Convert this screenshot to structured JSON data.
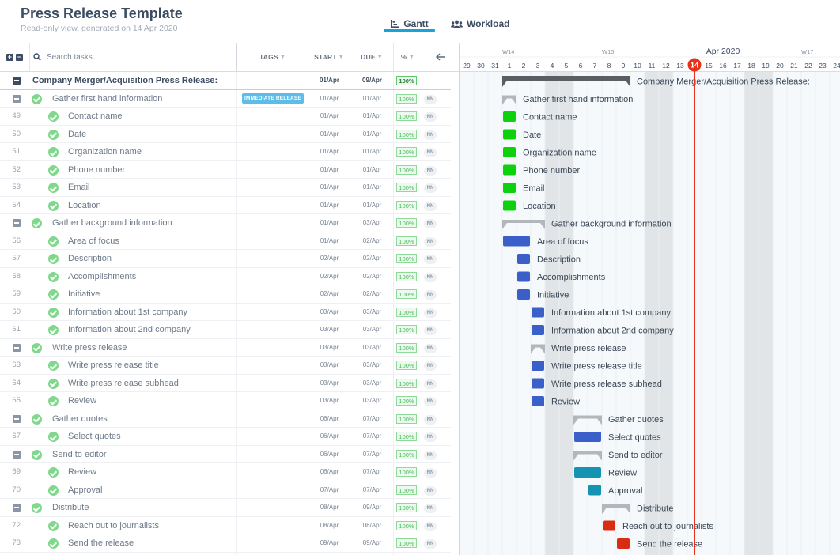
{
  "header": {
    "title": "Press Release Template",
    "subtitle": "Read-only view, generated on 14 Apr 2020",
    "tabs": [
      {
        "label": "Gantt",
        "icon": "bar-chart-icon",
        "active": true
      },
      {
        "label": "Workload",
        "icon": "users-icon",
        "active": false
      }
    ]
  },
  "table": {
    "search_placeholder": "Search tasks...",
    "columns": {
      "tags": "TAGS",
      "start": "START",
      "due": "DUE",
      "percent": "%"
    },
    "back_icon": "arrow-left-icon",
    "rows": [
      {
        "num": "",
        "name": "Company Merger/Acquisition Press Release:",
        "level": 0,
        "type": "top",
        "tag": "",
        "start": "01/Apr",
        "due": "09/Apr",
        "pct": "100%",
        "assignee": ""
      },
      {
        "num": "",
        "name": "Gather first hand information",
        "level": 1,
        "type": "group",
        "tag": "IMMEDIATE RELEASE",
        "start": "01/Apr",
        "due": "01/Apr",
        "pct": "100%",
        "assignee": "NN"
      },
      {
        "num": "49",
        "name": "Contact name",
        "level": 2,
        "type": "task",
        "tag": "",
        "start": "01/Apr",
        "due": "01/Apr",
        "pct": "100%",
        "assignee": "NN"
      },
      {
        "num": "50",
        "name": "Date",
        "level": 2,
        "type": "task",
        "tag": "",
        "start": "01/Apr",
        "due": "01/Apr",
        "pct": "100%",
        "assignee": "NN"
      },
      {
        "num": "51",
        "name": "Organization name",
        "level": 2,
        "type": "task",
        "tag": "",
        "start": "01/Apr",
        "due": "01/Apr",
        "pct": "100%",
        "assignee": "NN"
      },
      {
        "num": "52",
        "name": "Phone number",
        "level": 2,
        "type": "task",
        "tag": "",
        "start": "01/Apr",
        "due": "01/Apr",
        "pct": "100%",
        "assignee": "NN"
      },
      {
        "num": "53",
        "name": "Email",
        "level": 2,
        "type": "task",
        "tag": "",
        "start": "01/Apr",
        "due": "01/Apr",
        "pct": "100%",
        "assignee": "NN"
      },
      {
        "num": "54",
        "name": "Location",
        "level": 2,
        "type": "task",
        "tag": "",
        "start": "01/Apr",
        "due": "01/Apr",
        "pct": "100%",
        "assignee": "NN"
      },
      {
        "num": "",
        "name": "Gather background information",
        "level": 1,
        "type": "group",
        "tag": "",
        "start": "01/Apr",
        "due": "03/Apr",
        "pct": "100%",
        "assignee": "NN"
      },
      {
        "num": "56",
        "name": "Area of focus",
        "level": 2,
        "type": "task",
        "tag": "",
        "start": "01/Apr",
        "due": "02/Apr",
        "pct": "100%",
        "assignee": "NN"
      },
      {
        "num": "57",
        "name": "Description",
        "level": 2,
        "type": "task",
        "tag": "",
        "start": "02/Apr",
        "due": "02/Apr",
        "pct": "100%",
        "assignee": "NN"
      },
      {
        "num": "58",
        "name": "Accomplishments",
        "level": 2,
        "type": "task",
        "tag": "",
        "start": "02/Apr",
        "due": "02/Apr",
        "pct": "100%",
        "assignee": "NN"
      },
      {
        "num": "59",
        "name": "Initiative",
        "level": 2,
        "type": "task",
        "tag": "",
        "start": "02/Apr",
        "due": "02/Apr",
        "pct": "100%",
        "assignee": "NN"
      },
      {
        "num": "60",
        "name": "Information about 1st company",
        "level": 2,
        "type": "task",
        "tag": "",
        "start": "03/Apr",
        "due": "03/Apr",
        "pct": "100%",
        "assignee": "NN"
      },
      {
        "num": "61",
        "name": "Information about 2nd company",
        "level": 2,
        "type": "task",
        "tag": "",
        "start": "03/Apr",
        "due": "03/Apr",
        "pct": "100%",
        "assignee": "NN"
      },
      {
        "num": "",
        "name": "Write press release",
        "level": 1,
        "type": "group",
        "tag": "",
        "start": "03/Apr",
        "due": "03/Apr",
        "pct": "100%",
        "assignee": "NN"
      },
      {
        "num": "63",
        "name": "Write press release title",
        "level": 2,
        "type": "task",
        "tag": "",
        "start": "03/Apr",
        "due": "03/Apr",
        "pct": "100%",
        "assignee": "NN"
      },
      {
        "num": "64",
        "name": "Write press release subhead",
        "level": 2,
        "type": "task",
        "tag": "",
        "start": "03/Apr",
        "due": "03/Apr",
        "pct": "100%",
        "assignee": "NN"
      },
      {
        "num": "65",
        "name": "Review",
        "level": 2,
        "type": "task",
        "tag": "",
        "start": "03/Apr",
        "due": "03/Apr",
        "pct": "100%",
        "assignee": "NN"
      },
      {
        "num": "",
        "name": "Gather quotes",
        "level": 1,
        "type": "group",
        "tag": "",
        "start": "06/Apr",
        "due": "07/Apr",
        "pct": "100%",
        "assignee": "NN"
      },
      {
        "num": "67",
        "name": "Select quotes",
        "level": 2,
        "type": "task",
        "tag": "",
        "start": "06/Apr",
        "due": "07/Apr",
        "pct": "100%",
        "assignee": "NN"
      },
      {
        "num": "",
        "name": "Send to editor",
        "level": 1,
        "type": "group",
        "tag": "",
        "start": "06/Apr",
        "due": "07/Apr",
        "pct": "100%",
        "assignee": "NN"
      },
      {
        "num": "69",
        "name": "Review",
        "level": 2,
        "type": "task",
        "tag": "",
        "start": "06/Apr",
        "due": "07/Apr",
        "pct": "100%",
        "assignee": "NN"
      },
      {
        "num": "70",
        "name": "Approval",
        "level": 2,
        "type": "task",
        "tag": "",
        "start": "07/Apr",
        "due": "07/Apr",
        "pct": "100%",
        "assignee": "NN"
      },
      {
        "num": "",
        "name": "Distribute",
        "level": 1,
        "type": "group",
        "tag": "",
        "start": "08/Apr",
        "due": "09/Apr",
        "pct": "100%",
        "assignee": "NN"
      },
      {
        "num": "72",
        "name": "Reach out to journalists",
        "level": 2,
        "type": "task",
        "tag": "",
        "start": "08/Apr",
        "due": "08/Apr",
        "pct": "100%",
        "assignee": "NN"
      },
      {
        "num": "73",
        "name": "Send the release",
        "level": 2,
        "type": "task",
        "tag": "",
        "start": "09/Apr",
        "due": "09/Apr",
        "pct": "100%",
        "assignee": "NN"
      }
    ]
  },
  "gantt": {
    "month_label": "Apr 2020",
    "today_label": "14",
    "week_labels": [
      {
        "label": "W14",
        "day": "1"
      },
      {
        "label": "W15",
        "day": "8"
      },
      {
        "label": "W17",
        "day": "22"
      }
    ],
    "days": [
      "29",
      "30",
      "31",
      "1",
      "2",
      "3",
      "4",
      "5",
      "6",
      "7",
      "8",
      "9",
      "10",
      "11",
      "12",
      "13",
      "14",
      "15",
      "16",
      "17",
      "18",
      "19",
      "20",
      "21",
      "22",
      "23",
      "24"
    ],
    "weekend_days": [
      "4",
      "5",
      "11",
      "12",
      "18",
      "19"
    ],
    "today_day": "14",
    "colors": {
      "green": "#0dd10d",
      "blue": "#3b5fc8",
      "teal": "#1593b3",
      "red": "#d92d12",
      "group": "#b3b6ba",
      "top": "#5b5f63",
      "today": "#e8331c",
      "weekend": "#e2e5e8",
      "weekday": "#f5f9fc"
    },
    "bars": [
      {
        "label": "Company Merger/Acquisition Press Release:",
        "start_day": 1,
        "end_day": 9,
        "kind": "top",
        "color": "top"
      },
      {
        "label": "Gather first hand information",
        "start_day": 1,
        "end_day": 1,
        "kind": "group",
        "color": "group"
      },
      {
        "label": "Contact name",
        "start_day": 1,
        "end_day": 1,
        "kind": "task",
        "color": "green"
      },
      {
        "label": "Date",
        "start_day": 1,
        "end_day": 1,
        "kind": "task",
        "color": "green"
      },
      {
        "label": "Organization name",
        "start_day": 1,
        "end_day": 1,
        "kind": "task",
        "color": "green"
      },
      {
        "label": "Phone number",
        "start_day": 1,
        "end_day": 1,
        "kind": "task",
        "color": "green"
      },
      {
        "label": "Email",
        "start_day": 1,
        "end_day": 1,
        "kind": "task",
        "color": "green"
      },
      {
        "label": "Location",
        "start_day": 1,
        "end_day": 1,
        "kind": "task",
        "color": "green"
      },
      {
        "label": "Gather background information",
        "start_day": 1,
        "end_day": 3,
        "kind": "group",
        "color": "group"
      },
      {
        "label": "Area of focus",
        "start_day": 1,
        "end_day": 2,
        "kind": "task",
        "color": "blue"
      },
      {
        "label": "Description",
        "start_day": 2,
        "end_day": 2,
        "kind": "task",
        "color": "blue"
      },
      {
        "label": "Accomplishments",
        "start_day": 2,
        "end_day": 2,
        "kind": "task",
        "color": "blue"
      },
      {
        "label": "Initiative",
        "start_day": 2,
        "end_day": 2,
        "kind": "task",
        "color": "blue"
      },
      {
        "label": "Information about 1st company",
        "start_day": 3,
        "end_day": 3,
        "kind": "task",
        "color": "blue"
      },
      {
        "label": "Information about 2nd company",
        "start_day": 3,
        "end_day": 3,
        "kind": "task",
        "color": "blue"
      },
      {
        "label": "Write press release",
        "start_day": 3,
        "end_day": 3,
        "kind": "group",
        "color": "group"
      },
      {
        "label": "Write press release title",
        "start_day": 3,
        "end_day": 3,
        "kind": "task",
        "color": "blue"
      },
      {
        "label": "Write press release subhead",
        "start_day": 3,
        "end_day": 3,
        "kind": "task",
        "color": "blue"
      },
      {
        "label": "Review",
        "start_day": 3,
        "end_day": 3,
        "kind": "task",
        "color": "blue"
      },
      {
        "label": "Gather quotes",
        "start_day": 6,
        "end_day": 7,
        "kind": "group",
        "color": "group"
      },
      {
        "label": "Select quotes",
        "start_day": 6,
        "end_day": 7,
        "kind": "task",
        "color": "blue"
      },
      {
        "label": "Send to editor",
        "start_day": 6,
        "end_day": 7,
        "kind": "group",
        "color": "group"
      },
      {
        "label": "Review",
        "start_day": 6,
        "end_day": 7,
        "kind": "task",
        "color": "teal"
      },
      {
        "label": "Approval",
        "start_day": 7,
        "end_day": 7,
        "kind": "task",
        "color": "teal"
      },
      {
        "label": "Distribute",
        "start_day": 8,
        "end_day": 9,
        "kind": "group",
        "color": "group"
      },
      {
        "label": "Reach out to journalists",
        "start_day": 8,
        "end_day": 8,
        "kind": "task",
        "color": "red"
      },
      {
        "label": "Send the release",
        "start_day": 9,
        "end_day": 9,
        "kind": "task",
        "color": "red"
      }
    ]
  }
}
